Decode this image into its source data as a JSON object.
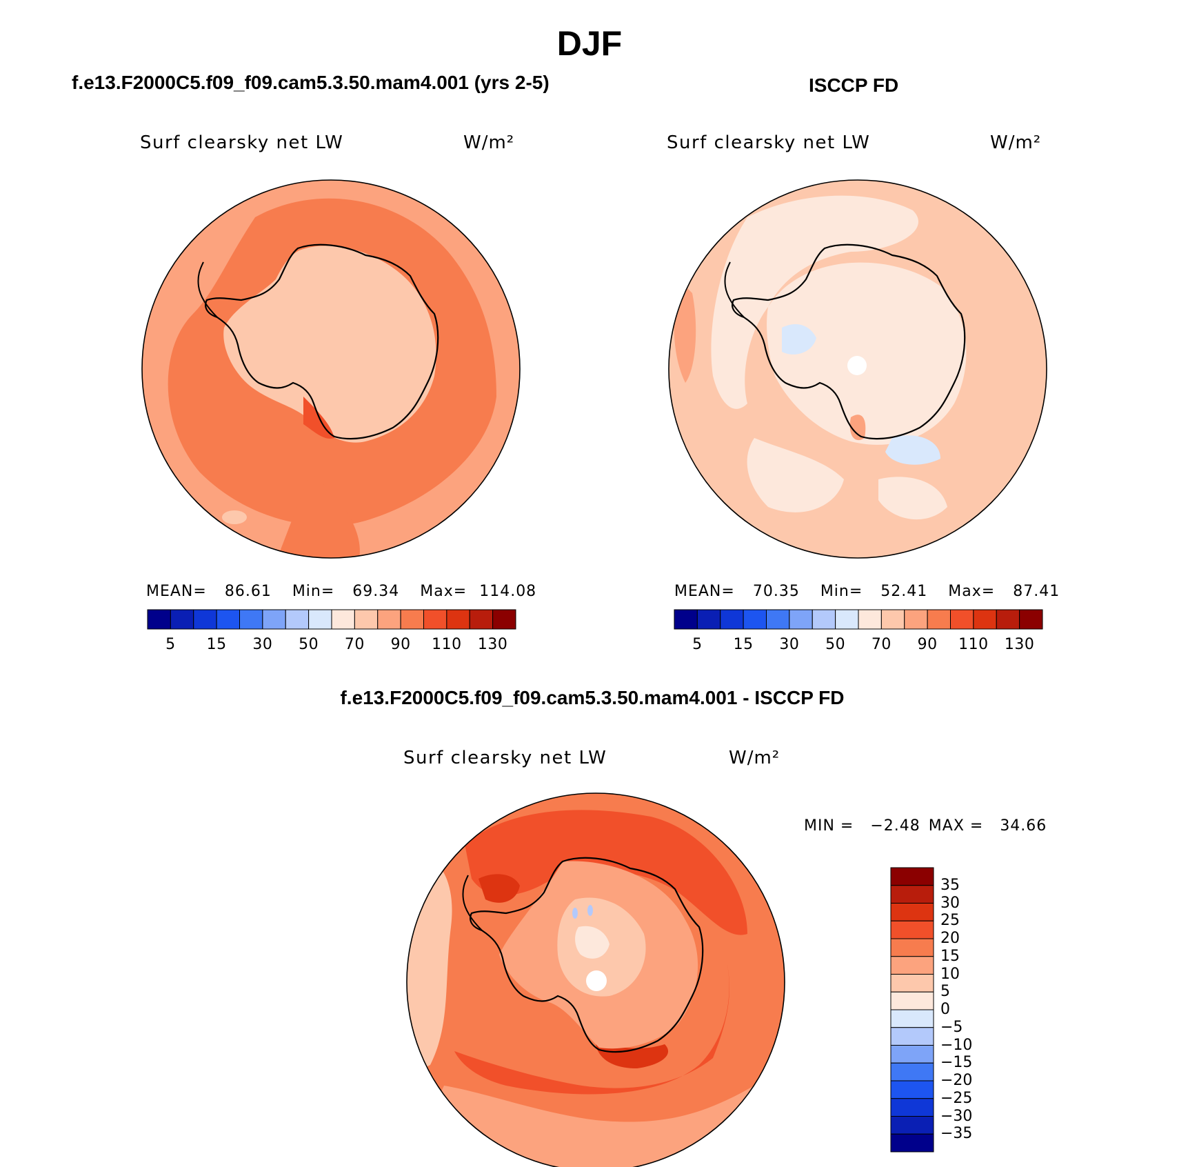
{
  "figure": {
    "season_title": "DJF",
    "panels": [
      {
        "case_title": "f.e13.F2000C5.f09_f09.cam5.3.50.mam4.001 (yrs 2-5)",
        "variable": "Surf clearsky net LW",
        "units": "W/m²",
        "stats": {
          "mean_label": "MEAN=",
          "mean": "86.61",
          "min_label": "Min=",
          "min": "69.34",
          "max_label": "Max=",
          "max": "114.08"
        }
      },
      {
        "case_title": "ISCCP FD",
        "variable": "Surf clearsky net LW",
        "units": "W/m²",
        "stats": {
          "mean_label": "MEAN=",
          "mean": "70.35",
          "min_label": "Min=",
          "min": "52.41",
          "max_label": "Max=",
          "max": "87.41"
        }
      },
      {
        "case_title": "f.e13.F2000C5.f09_f09.cam5.3.50.mam4.001 - ISCCP FD",
        "variable": "Surf clearsky net LW",
        "units": "W/m²",
        "stats": {
          "min_label": "MIN =",
          "min": "−2.48",
          "max_label": "MAX =",
          "max": "34.66"
        }
      }
    ],
    "colorbar_abs": {
      "tick_labels": [
        "5",
        "15",
        "30",
        "50",
        "70",
        "90",
        "110",
        "130"
      ],
      "colors": [
        "#00008b",
        "#0a1fb4",
        "#0f37d7",
        "#1d55f0",
        "#3f78f5",
        "#7ea4f8",
        "#b3c9fb",
        "#d9e8fc",
        "#fde8dc",
        "#fdc8ac",
        "#fca37e",
        "#f77c4e",
        "#f1502a",
        "#dd3411",
        "#b81d0c",
        "#8b0000"
      ]
    },
    "colorbar_diff": {
      "tick_labels": [
        "35",
        "30",
        "25",
        "20",
        "15",
        "10",
        "5",
        "0",
        "−5",
        "−10",
        "−15",
        "−20",
        "−25",
        "−30",
        "−35"
      ],
      "colors": [
        "#8b0000",
        "#b81d0c",
        "#dd3411",
        "#f1502a",
        "#f77c4e",
        "#fca37e",
        "#fdc8ac",
        "#fde8dc",
        "#d9e8fc",
        "#b3c9fb",
        "#7ea4f8",
        "#3f78f5",
        "#1d55f0",
        "#0f37d7",
        "#0a1fb4",
        "#00008b"
      ]
    }
  }
}
